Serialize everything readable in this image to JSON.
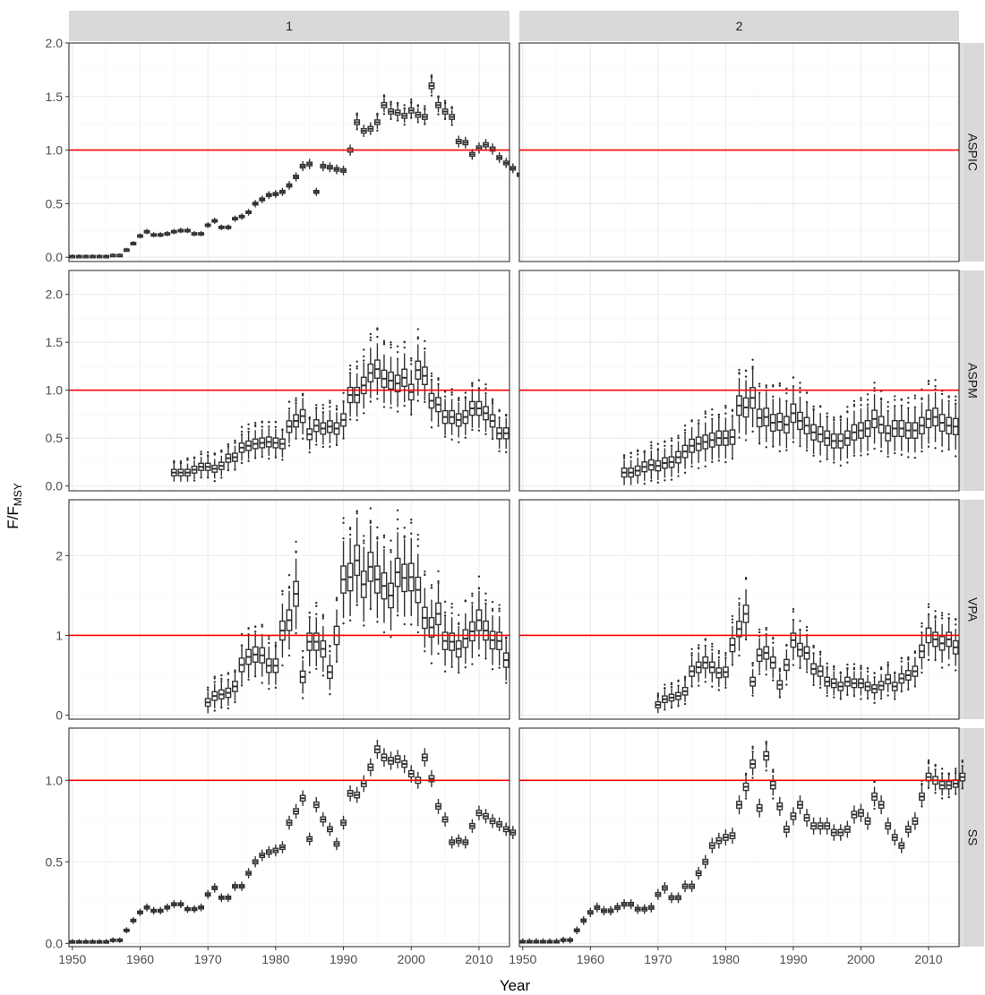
{
  "chart_data": {
    "type": "boxplot",
    "xlabel": "Year",
    "ylabel_main": "F/F",
    "ylabel_sub": "MSY",
    "columns": [
      "1",
      "2"
    ],
    "rows": [
      "ASPIC",
      "ASPM",
      "VPA",
      "SS"
    ],
    "x_range": [
      1949.5,
      2014.5
    ],
    "x_ticks": [
      1950,
      1960,
      1970,
      1980,
      1990,
      2000,
      2010
    ],
    "x_tick_labels": {
      "col1": [
        "1950",
        "1960",
        "1970",
        "1980",
        "1990",
        "2000",
        "2010"
      ],
      "col2": [
        "1950",
        "1960",
        "1970",
        "1980",
        "1990",
        "2000",
        "2010"
      ]
    },
    "y_ranges": {
      "ASPIC": [
        -0.04,
        2.0
      ],
      "ASPM": [
        -0.05,
        2.25
      ],
      "VPA": [
        -0.05,
        2.7
      ],
      "SS": [
        -0.02,
        1.32
      ]
    },
    "y_ticks": {
      "ASPIC": [
        0,
        0.5,
        1.0,
        1.5,
        2.0
      ],
      "ASPM": [
        0,
        0.5,
        1.0,
        1.5,
        2.0
      ],
      "VPA": [
        0,
        1,
        2
      ],
      "SS": [
        0,
        0.5,
        1.0
      ]
    },
    "y_tick_labels": {
      "ASPIC": [
        "0.0",
        "0.5",
        "1.0",
        "1.5",
        "2.0"
      ],
      "ASPM": [
        "0.0",
        "0.5",
        "1.0",
        "1.5",
        "2.0"
      ],
      "VPA": [
        "0",
        "1",
        "2"
      ],
      "SS": [
        "0.0",
        "0.5",
        "1.0"
      ]
    },
    "reference_line": {
      "y": 1.0,
      "color": "#ff0000"
    },
    "colors": {
      "strip": "#d9d9d9",
      "box": "#333333",
      "grid": "#ebebeb",
      "reference": "#ff0000"
    },
    "panels": [
      {
        "row": "ASPIC",
        "col": "1",
        "start_year": 1950,
        "spread": 0.04,
        "medians": [
          0.01,
          0.01,
          0.01,
          0.01,
          0.01,
          0.01,
          0.02,
          0.02,
          0.07,
          0.13,
          0.2,
          0.24,
          0.21,
          0.21,
          0.22,
          0.24,
          0.25,
          0.25,
          0.22,
          0.22,
          0.3,
          0.34,
          0.28,
          0.28,
          0.36,
          0.38,
          0.42,
          0.5,
          0.54,
          0.58,
          0.59,
          0.61,
          0.67,
          0.75,
          0.85,
          0.87,
          0.61,
          0.85,
          0.84,
          0.82,
          0.81,
          1.0,
          1.26,
          1.18,
          1.2,
          1.26,
          1.42,
          1.36,
          1.35,
          1.32,
          1.37,
          1.33,
          1.31,
          1.6,
          1.42,
          1.36,
          1.31,
          1.08,
          1.07,
          0.96,
          1.02,
          1.05,
          1.01,
          0.93,
          0.88,
          0.83,
          0.77
        ]
      },
      {
        "row": "ASPIC",
        "col": "2",
        "start_year": 1950,
        "spread": 0,
        "medians": []
      },
      {
        "row": "ASPM",
        "col": "1",
        "start_year": 1965,
        "spread": 0.18,
        "medians": [
          0.14,
          0.14,
          0.14,
          0.17,
          0.2,
          0.2,
          0.18,
          0.21,
          0.29,
          0.3,
          0.4,
          0.42,
          0.44,
          0.45,
          0.46,
          0.45,
          0.44,
          0.62,
          0.68,
          0.73,
          0.54,
          0.63,
          0.6,
          0.62,
          0.6,
          0.69,
          0.95,
          0.95,
          1.05,
          1.18,
          1.22,
          1.12,
          1.1,
          1.07,
          1.13,
          0.98,
          1.21,
          1.15,
          0.89,
          0.85,
          0.72,
          0.72,
          0.69,
          0.72,
          0.81,
          0.81,
          0.76,
          0.68,
          0.55,
          0.55
        ]
      },
      {
        "row": "ASPM",
        "col": "2",
        "start_year": 1965,
        "spread": 0.25,
        "medians": [
          0.14,
          0.14,
          0.16,
          0.2,
          0.22,
          0.21,
          0.24,
          0.25,
          0.3,
          0.36,
          0.42,
          0.44,
          0.46,
          0.48,
          0.5,
          0.5,
          0.51,
          0.84,
          0.82,
          0.92,
          0.71,
          0.72,
          0.66,
          0.67,
          0.64,
          0.76,
          0.68,
          0.63,
          0.56,
          0.54,
          0.5,
          0.47,
          0.47,
          0.5,
          0.56,
          0.58,
          0.6,
          0.7,
          0.64,
          0.55,
          0.6,
          0.6,
          0.58,
          0.58,
          0.63,
          0.7,
          0.72,
          0.66,
          0.63,
          0.62
        ]
      },
      {
        "row": "VPA",
        "col": "1",
        "start_year": 1970,
        "spread": 0.25,
        "medians": [
          0.16,
          0.24,
          0.26,
          0.28,
          0.36,
          0.63,
          0.73,
          0.76,
          0.75,
          0.62,
          0.62,
          1.06,
          1.19,
          1.52,
          0.48,
          0.92,
          0.92,
          0.83,
          0.54,
          1.0,
          1.7,
          1.73,
          1.94,
          1.64,
          1.86,
          1.7,
          1.62,
          1.5,
          1.79,
          1.72,
          1.73,
          1.57,
          1.22,
          1.1,
          1.27,
          0.93,
          0.92,
          0.83,
          0.96,
          1.05,
          1.19,
          1.06,
          0.94,
          0.93,
          0.69
        ]
      },
      {
        "row": "VPA",
        "col": "2",
        "start_year": 1970,
        "spread": 0.2,
        "medians": [
          0.13,
          0.2,
          0.22,
          0.24,
          0.3,
          0.55,
          0.6,
          0.66,
          0.6,
          0.53,
          0.54,
          0.88,
          1.08,
          1.27,
          0.42,
          0.75,
          0.78,
          0.66,
          0.38,
          0.63,
          0.94,
          0.82,
          0.78,
          0.58,
          0.55,
          0.42,
          0.4,
          0.36,
          0.42,
          0.4,
          0.4,
          0.36,
          0.33,
          0.37,
          0.45,
          0.36,
          0.46,
          0.5,
          0.55,
          0.8,
          1.0,
          0.95,
          0.9,
          0.95,
          0.85
        ]
      },
      {
        "row": "SS",
        "col": "1",
        "start_year": 1950,
        "spread": 0.04,
        "medians": [
          0.01,
          0.01,
          0.01,
          0.01,
          0.01,
          0.01,
          0.02,
          0.02,
          0.08,
          0.14,
          0.19,
          0.22,
          0.2,
          0.2,
          0.22,
          0.24,
          0.24,
          0.21,
          0.21,
          0.22,
          0.3,
          0.34,
          0.28,
          0.28,
          0.35,
          0.35,
          0.43,
          0.5,
          0.54,
          0.56,
          0.57,
          0.59,
          0.74,
          0.81,
          0.89,
          0.64,
          0.85,
          0.76,
          0.7,
          0.61,
          0.74,
          0.92,
          0.91,
          0.98,
          1.08,
          1.19,
          1.14,
          1.12,
          1.13,
          1.1,
          1.04,
          1.0,
          1.14,
          1.01,
          0.84,
          0.76,
          0.62,
          0.63,
          0.62,
          0.72,
          0.8,
          0.78,
          0.75,
          0.73,
          0.7,
          0.68
        ]
      },
      {
        "row": "SS",
        "col": "2",
        "start_year": 1950,
        "spread": 0.05,
        "medians": [
          0.01,
          0.01,
          0.01,
          0.01,
          0.01,
          0.01,
          0.02,
          0.02,
          0.08,
          0.14,
          0.19,
          0.22,
          0.2,
          0.2,
          0.22,
          0.24,
          0.24,
          0.21,
          0.21,
          0.22,
          0.3,
          0.34,
          0.28,
          0.28,
          0.35,
          0.35,
          0.43,
          0.5,
          0.6,
          0.63,
          0.65,
          0.66,
          0.85,
          0.96,
          1.1,
          0.83,
          1.15,
          0.97,
          0.84,
          0.7,
          0.78,
          0.85,
          0.77,
          0.72,
          0.72,
          0.72,
          0.68,
          0.68,
          0.7,
          0.79,
          0.8,
          0.75,
          0.9,
          0.85,
          0.72,
          0.65,
          0.6,
          0.7,
          0.75,
          0.9,
          1.02,
          1.0,
          0.97,
          0.97,
          0.98,
          1.02
        ]
      }
    ]
  }
}
